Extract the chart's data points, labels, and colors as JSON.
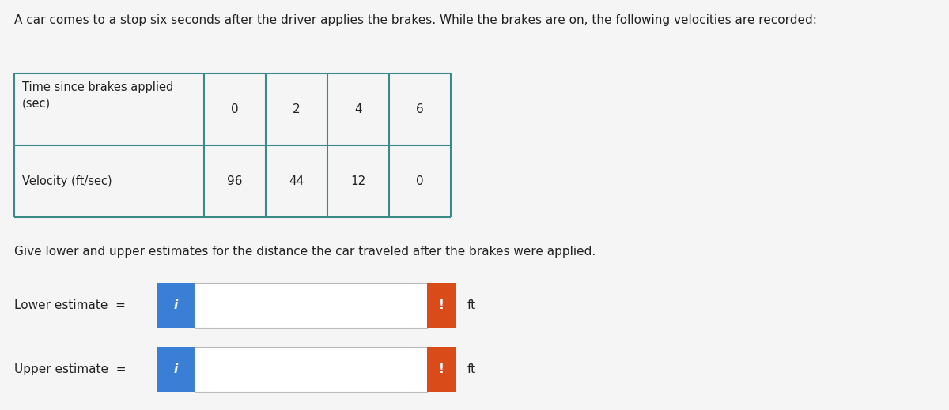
{
  "title_text": "A car comes to a stop six seconds after the driver applies the brakes. While the brakes are on, the following velocities are recorded:",
  "title_fontsize": 11.0,
  "background_color": "#f5f5f5",
  "table_row1_label": "Time since brakes applied\n(sec)",
  "table_row2_label": "Velocity (ft/sec)",
  "table_data_row1": [
    "0",
    "2",
    "4",
    "6"
  ],
  "table_data_row2": [
    "96",
    "44",
    "12",
    "0"
  ],
  "table_border_color": "#3a8a8a",
  "table_bg_data": "#f5f5f5",
  "table_bg_label": "#f5f5f5",
  "question_text": "Give lower and upper estimates for the distance the car traveled after the brakes were applied.",
  "question_fontsize": 11.0,
  "lower_label": "Lower estimate  =",
  "upper_label": "Upper estimate  =",
  "input_box_color": "#3a7fd5",
  "warning_box_color": "#d94c1a",
  "ft_label": "ft",
  "label_fontsize": 11.0
}
